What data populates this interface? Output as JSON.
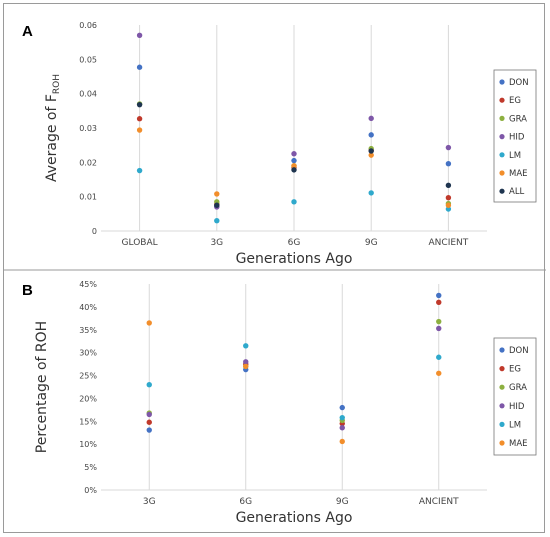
{
  "chart_data": [
    {
      "panel": "A",
      "type": "scatter",
      "categories": [
        "GLOBAL",
        "3G",
        "6G",
        "9G",
        "ANCIENT"
      ],
      "xlabel": "Generations Ago",
      "ylabel_main": "Average of F",
      "ylabel_sub": "ROH",
      "ylim": [
        0,
        0.06
      ],
      "yticks": [
        0,
        0.01,
        0.02,
        0.03,
        0.04,
        0.05,
        0.06
      ],
      "ytick_labels": [
        "0",
        "0.01",
        "0.02",
        "0.03",
        "0.04",
        "0.05",
        "0.06"
      ],
      "grid": "vertical",
      "legend_position": "right",
      "series": [
        {
          "name": "DON",
          "color": "#4472C4",
          "values": [
            0.0477,
            0.0072,
            0.0205,
            0.028,
            0.0196
          ]
        },
        {
          "name": "EG",
          "color": "#C0392B",
          "values": [
            0.0327,
            0.0078,
            0.0185,
            0.0235,
            0.0097
          ]
        },
        {
          "name": "GRA",
          "color": "#8DB040",
          "values": [
            0.037,
            0.0085,
            0.019,
            0.024,
            0.008
          ]
        },
        {
          "name": "HID",
          "color": "#7E57A8",
          "values": [
            0.057,
            0.007,
            0.0225,
            0.0328,
            0.0243
          ]
        },
        {
          "name": "LM",
          "color": "#2FA9CC",
          "values": [
            0.0176,
            0.003,
            0.0085,
            0.0111,
            0.0064
          ]
        },
        {
          "name": "MAE",
          "color": "#F28E2B",
          "values": [
            0.0294,
            0.0108,
            0.019,
            0.0221,
            0.0075
          ]
        },
        {
          "name": "ALL",
          "color": "#1F3550",
          "values": [
            0.0368,
            0.0075,
            0.0178,
            0.0233,
            0.0133
          ]
        }
      ]
    },
    {
      "panel": "B",
      "type": "scatter",
      "categories": [
        "3G",
        "6G",
        "9G",
        "ANCIENT"
      ],
      "xlabel": "Generations Ago",
      "ylabel": "Percentage of ROH",
      "ylim": [
        0,
        45
      ],
      "yticks": [
        0,
        5,
        10,
        15,
        20,
        25,
        30,
        35,
        40,
        45
      ],
      "ytick_labels": [
        "0%",
        "5%",
        "10%",
        "15%",
        "20%",
        "25%",
        "30%",
        "35%",
        "40%",
        "45%"
      ],
      "grid": "vertical",
      "legend_position": "right",
      "series": [
        {
          "name": "DON",
          "color": "#4472C4",
          "values": [
            13.1,
            26.3,
            18.0,
            42.5
          ]
        },
        {
          "name": "EG",
          "color": "#C0392B",
          "values": [
            14.8,
            27.5,
            14.5,
            41.0
          ]
        },
        {
          "name": "GRA",
          "color": "#8DB040",
          "values": [
            16.8,
            27.0,
            15.2,
            36.8
          ]
        },
        {
          "name": "HID",
          "color": "#7E57A8",
          "values": [
            16.5,
            28.0,
            13.6,
            35.3
          ]
        },
        {
          "name": "LM",
          "color": "#2FA9CC",
          "values": [
            23.0,
            31.5,
            15.8,
            29.0
          ]
        },
        {
          "name": "MAE",
          "color": "#F28E2B",
          "values": [
            36.5,
            27.0,
            10.6,
            25.5
          ]
        }
      ]
    }
  ]
}
